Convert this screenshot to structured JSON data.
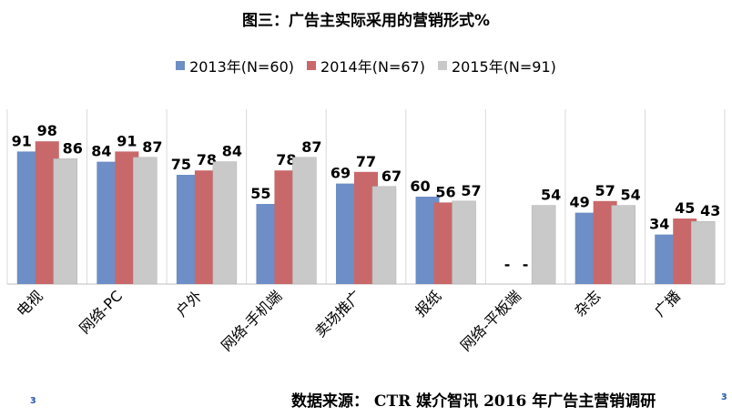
{
  "chart_data": {
    "type": "bar",
    "title": "图三：广告主实际采用的营销形式%",
    "categories": [
      "电视",
      "网络-PC",
      "户外",
      "网络-手机端",
      "卖场推广",
      "报纸",
      "网络-平板端",
      "杂志",
      "广播"
    ],
    "series": [
      {
        "name": "2013年(N=60)",
        "color": "#6d8ec6",
        "values": [
          91,
          84,
          75,
          55,
          69,
          60,
          null,
          49,
          34
        ],
        "labels": [
          "91",
          "84",
          "75",
          "55",
          "69",
          "60",
          "-",
          "49",
          "34"
        ]
      },
      {
        "name": "2014年(N=67)",
        "color": "#c9686a",
        "values": [
          98,
          91,
          78,
          78,
          77,
          56,
          null,
          57,
          45
        ],
        "labels": [
          "98",
          "91",
          "78",
          "78",
          "77",
          "56",
          "-",
          "57",
          "45"
        ]
      },
      {
        "name": "2015年(N=91)",
        "color": "#c9c9c9",
        "values": [
          86,
          87,
          84,
          87,
          67,
          57,
          54,
          54,
          43
        ],
        "labels": [
          "86",
          "87",
          "84",
          "87",
          "67",
          "57",
          "54",
          "54",
          "43"
        ]
      }
    ],
    "ylim": [
      0,
      100
    ],
    "xlabel": "",
    "ylabel": "",
    "legend": "top-center",
    "grid": false
  },
  "footer": {
    "source": "数据来源： CTR 媒介智讯 2016 年广告主营销调研",
    "left_mark": "ɜ",
    "right_mark": "ɜ"
  }
}
